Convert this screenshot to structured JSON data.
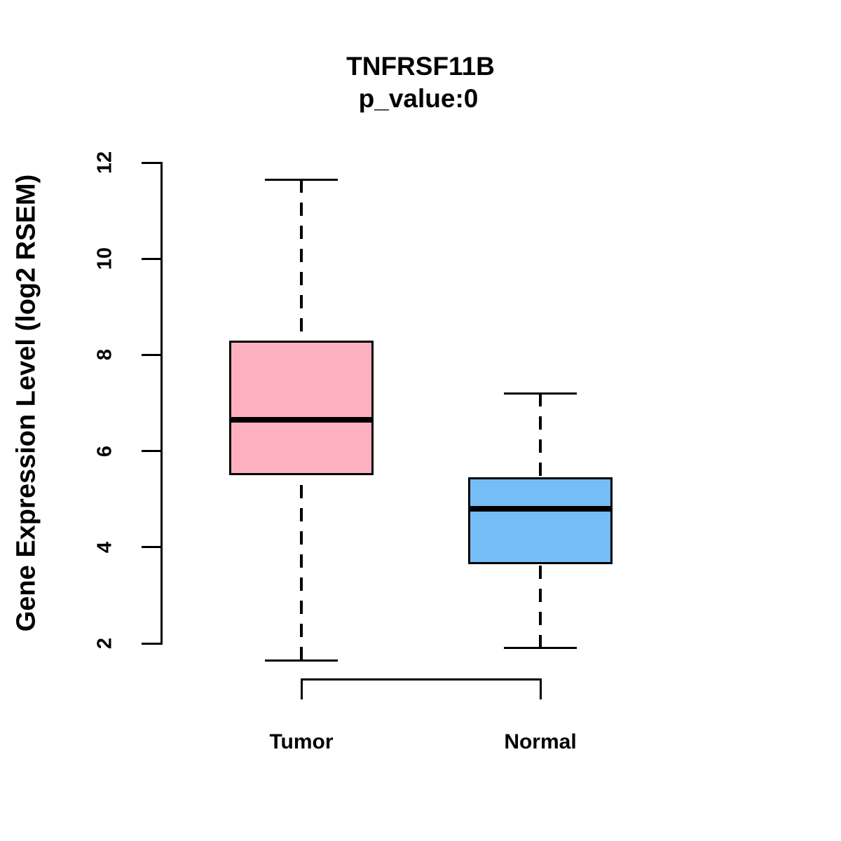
{
  "title": "TNFRSF11B",
  "subtitle": "p_value:0",
  "chart_data": {
    "type": "boxplot",
    "title": "TNFRSF11B",
    "subtitle": "p_value:0",
    "ylabel": "Gene Expression Level (log2 RSEM)",
    "xlabel": "",
    "ylim": [
      2,
      12
    ],
    "yticks": [
      2,
      4,
      6,
      8,
      10,
      12
    ],
    "grid": false,
    "legend": "none",
    "categories": [
      "Tumor",
      "Normal"
    ],
    "series": [
      {
        "name": "Tumor",
        "color": "#ffb0c0",
        "whisker_low": 1.65,
        "q1": 5.5,
        "median": 6.65,
        "q3": 8.3,
        "whisker_high": 11.65
      },
      {
        "name": "Normal",
        "color": "#74bdf7",
        "whisker_low": 1.9,
        "q1": 3.65,
        "median": 4.8,
        "q3": 5.45,
        "whisker_high": 7.2
      }
    ],
    "colors": {
      "box_border": "#000000",
      "median": "#000000",
      "axis": "#000000"
    }
  }
}
